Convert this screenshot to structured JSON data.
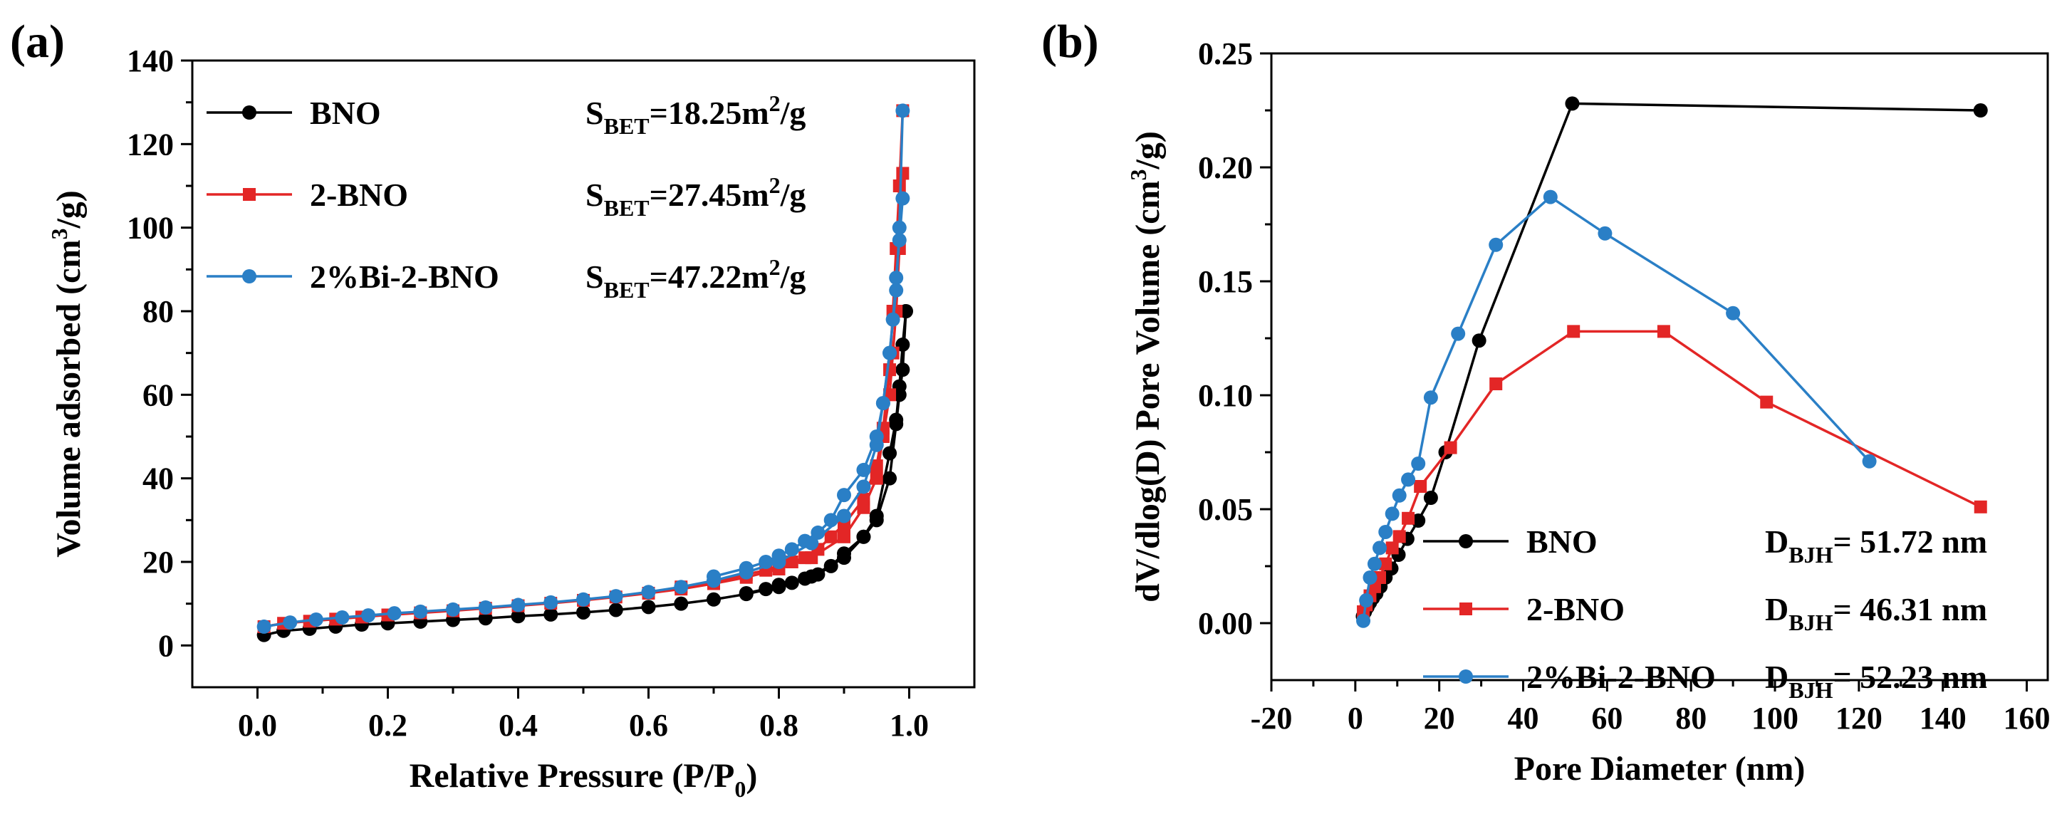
{
  "panels": [
    {
      "label": "(a)",
      "xlabel": "Relative Pressure (P/P",
      "xlabel_sub": "0",
      "xlabel_end": ")",
      "ylabel": "Volume adsorbed (cm",
      "ylabel_sup": "3",
      "ylabel_end": "/g)",
      "annotations": [
        {
          "prefix": "S",
          "sub": "BET",
          "mid": "=18.25m",
          "sup": "2",
          "end": "/g"
        },
        {
          "prefix": "S",
          "sub": "BET",
          "mid": "=27.45m",
          "sup": "2",
          "end": "/g"
        },
        {
          "prefix": "S",
          "sub": "BET",
          "mid": "=47.22m",
          "sup": "2",
          "end": "/g"
        }
      ]
    },
    {
      "label": "(b)",
      "xlabel": "Pore Diameter (nm)",
      "ylabel": "dV/dlog(D) Pore Volume (cm",
      "ylabel_sup": "3",
      "ylabel_end": "/g)",
      "annotations": [
        {
          "prefix": "D",
          "sub": "BJH",
          "mid": "= 51.72 nm",
          "sup": "",
          "end": ""
        },
        {
          "prefix": "D",
          "sub": "BJH",
          "mid": "= 46.31 nm",
          "sup": "",
          "end": ""
        },
        {
          "prefix": "D",
          "sub": "BJH",
          "mid": "= 52.23 nm",
          "sup": "",
          "end": ""
        }
      ]
    }
  ],
  "chart_data": [
    {
      "type": "line",
      "xlim": [
        -0.1,
        1.1
      ],
      "ylim": [
        -10,
        140
      ],
      "xticks": [
        0.0,
        0.2,
        0.4,
        0.6,
        0.8,
        1.0
      ],
      "xtick_labels": [
        "0.0",
        "0.2",
        "0.4",
        "0.6",
        "0.8",
        "1.0"
      ],
      "yticks": [
        0,
        20,
        40,
        60,
        80,
        100,
        120,
        140
      ],
      "ytick_labels": [
        "0",
        "20",
        "40",
        "60",
        "80",
        "100",
        "120",
        "140"
      ],
      "legend_position": "top-left",
      "series": [
        {
          "name": "BNO",
          "color": "#000000",
          "marker": "circle",
          "adsorption": {
            "x": [
              0.01,
              0.04,
              0.08,
              0.12,
              0.16,
              0.2,
              0.25,
              0.3,
              0.35,
              0.4,
              0.45,
              0.5,
              0.55,
              0.6,
              0.65,
              0.7,
              0.75,
              0.8,
              0.85,
              0.9,
              0.93,
              0.95,
              0.97,
              0.98,
              0.985,
              0.99,
              0.995
            ],
            "y": [
              2.5,
              3.5,
              4.0,
              4.5,
              5.0,
              5.3,
              5.7,
              6.1,
              6.5,
              7.0,
              7.4,
              7.9,
              8.5,
              9.2,
              10.0,
              11.0,
              12.3,
              14.0,
              16.5,
              21.0,
              26.0,
              31.0,
              46.0,
              54.0,
              62.0,
              72.0,
              80.0
            ]
          },
          "desorption": {
            "x": [
              0.995,
              0.99,
              0.985,
              0.98,
              0.97,
              0.95,
              0.93,
              0.9,
              0.88,
              0.86,
              0.84,
              0.82,
              0.8,
              0.78,
              0.75
            ],
            "y": [
              80.0,
              66.0,
              60.0,
              53.0,
              40.0,
              30.0,
              26.0,
              22.0,
              19.0,
              17.0,
              16.0,
              15.0,
              14.5,
              13.5,
              12.5
            ]
          }
        },
        {
          "name": "2-BNO",
          "color": "#e32626",
          "marker": "square",
          "adsorption": {
            "x": [
              0.01,
              0.04,
              0.08,
              0.12,
              0.16,
              0.2,
              0.25,
              0.3,
              0.35,
              0.4,
              0.45,
              0.5,
              0.55,
              0.6,
              0.65,
              0.7,
              0.75,
              0.8,
              0.85,
              0.9,
              0.93,
              0.95,
              0.96,
              0.97,
              0.975,
              0.98,
              0.985,
              0.99
            ],
            "y": [
              4.5,
              5.3,
              5.8,
              6.3,
              6.8,
              7.3,
              7.8,
              8.3,
              8.9,
              9.5,
              10.1,
              10.8,
              11.6,
              12.5,
              13.5,
              14.8,
              16.3,
              18.3,
              21.0,
              26.0,
              33.0,
              40.0,
              50.0,
              60.0,
              70.0,
              80.0,
              95.0,
              113.0
            ]
          },
          "desorption": {
            "x": [
              0.99,
              0.985,
              0.98,
              0.975,
              0.97,
              0.96,
              0.95,
              0.93,
              0.9,
              0.88,
              0.86,
              0.84,
              0.82,
              0.8,
              0.78,
              0.75,
              0.7,
              0.65
            ],
            "y": [
              128.0,
              110.0,
              95.0,
              80.0,
              66.0,
              52.0,
              43.0,
              35.0,
              29.0,
              26.0,
              23.0,
              21.0,
              20.0,
              19.0,
              18.0,
              17.0,
              15.0,
              14.0
            ]
          }
        },
        {
          "name": "2%Bi-2-BNO",
          "color": "#2a7fc6",
          "marker": "circle",
          "adsorption": {
            "x": [
              0.01,
              0.05,
              0.09,
              0.13,
              0.17,
              0.21,
              0.25,
              0.3,
              0.35,
              0.4,
              0.45,
              0.5,
              0.55,
              0.6,
              0.65,
              0.7,
              0.75,
              0.8,
              0.85,
              0.9,
              0.93,
              0.95,
              0.96,
              0.97,
              0.98,
              0.985,
              0.99
            ],
            "y": [
              4.5,
              5.5,
              6.2,
              6.7,
              7.2,
              7.7,
              8.1,
              8.6,
              9.1,
              9.7,
              10.3,
              11.0,
              11.8,
              12.8,
              14.0,
              15.5,
              17.5,
              20.0,
              24.5,
              31.0,
              38.0,
              48.0,
              58.0,
              70.0,
              85.0,
              100.0,
              128.0
            ]
          },
          "desorption": {
            "x": [
              0.99,
              0.985,
              0.98,
              0.975,
              0.97,
              0.96,
              0.95,
              0.93,
              0.9,
              0.88,
              0.86,
              0.84,
              0.82,
              0.8,
              0.78,
              0.75,
              0.7
            ],
            "y": [
              107.0,
              97.0,
              88.0,
              78.0,
              70.0,
              58.0,
              50.0,
              42.0,
              36.0,
              30.0,
              27.0,
              25.0,
              23.0,
              21.5,
              20.0,
              18.5,
              16.5
            ]
          }
        }
      ]
    },
    {
      "type": "line",
      "xlim": [
        -20,
        165
      ],
      "ylim": [
        -0.025,
        0.25
      ],
      "xticks": [
        -20,
        0,
        20,
        40,
        60,
        80,
        100,
        120,
        140,
        160
      ],
      "xtick_labels": [
        "-20",
        "0",
        "20",
        "40",
        "60",
        "80",
        "100",
        "120",
        "140",
        "160"
      ],
      "yticks": [
        0.0,
        0.05,
        0.1,
        0.15,
        0.2,
        0.25
      ],
      "ytick_labels": [
        "0.00",
        "0.05",
        "0.10",
        "0.15",
        "0.20",
        "0.25"
      ],
      "legend_position": "bottom-left",
      "series": [
        {
          "name": "BNO",
          "color": "#000000",
          "marker": "circle",
          "x": [
            1.8,
            2.3,
            2.9,
            3.5,
            4.2,
            5.0,
            6.0,
            7.2,
            8.6,
            10.3,
            12.4,
            15.0,
            18.0,
            21.5,
            29.5,
            51.7,
            149.0
          ],
          "y": [
            0.003,
            0.005,
            0.007,
            0.009,
            0.011,
            0.013,
            0.016,
            0.02,
            0.024,
            0.03,
            0.037,
            0.045,
            0.055,
            0.075,
            0.124,
            0.228,
            0.225
          ]
        },
        {
          "name": "2-BNO",
          "color": "#e32626",
          "marker": "square",
          "x": [
            1.9,
            2.6,
            3.5,
            4.6,
            5.8,
            7.2,
            8.8,
            10.5,
            12.6,
            15.5,
            22.7,
            33.5,
            52.0,
            73.5,
            98.0,
            149.0
          ],
          "y": [
            0.005,
            0.008,
            0.012,
            0.016,
            0.02,
            0.026,
            0.033,
            0.038,
            0.046,
            0.06,
            0.077,
            0.105,
            0.128,
            0.128,
            0.097,
            0.051
          ]
        },
        {
          "name": "2%Bi-2-BNO",
          "color": "#2a7fc6",
          "marker": "circle",
          "x": [
            1.9,
            2.6,
            3.5,
            4.6,
            5.8,
            7.2,
            8.8,
            10.5,
            12.6,
            15.0,
            18.0,
            24.5,
            33.5,
            46.5,
            59.5,
            90.0,
            122.5
          ],
          "y": [
            0.001,
            0.01,
            0.02,
            0.026,
            0.033,
            0.04,
            0.048,
            0.056,
            0.063,
            0.07,
            0.099,
            0.127,
            0.166,
            0.187,
            0.171,
            0.136,
            0.071
          ]
        }
      ]
    }
  ]
}
